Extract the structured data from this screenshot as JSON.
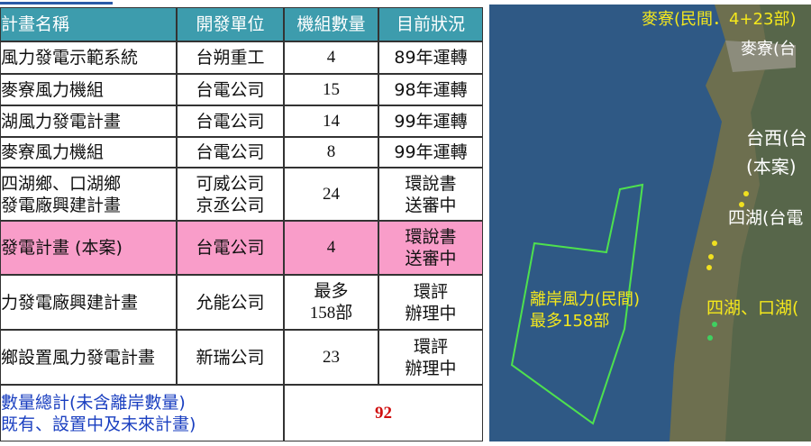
{
  "table": {
    "header": [
      "計畫名稱",
      "開發單位",
      "機組數量",
      "目前狀況"
    ],
    "rows": [
      [
        [
          "風力發電示範系統"
        ],
        [
          "台朔重工"
        ],
        [
          "4"
        ],
        [
          "89年運轉"
        ]
      ],
      [
        [
          "麥寮風力機組"
        ],
        [
          "台電公司"
        ],
        [
          "15"
        ],
        [
          "98年運轉"
        ]
      ],
      [
        [
          "湖風力發電計畫"
        ],
        [
          "台電公司"
        ],
        [
          "14"
        ],
        [
          "99年運轉"
        ]
      ],
      [
        [
          "麥寮風力機組"
        ],
        [
          "台電公司"
        ],
        [
          "8"
        ],
        [
          "99年運轉"
        ]
      ],
      [
        [
          "四湖鄉、口湖鄉",
          "發電廠興建計畫"
        ],
        [
          "可威公司",
          "京丞公司"
        ],
        [
          "24"
        ],
        [
          "環說書",
          "送審中"
        ]
      ],
      [
        [
          "發電計畫 (本案)"
        ],
        [
          "台電公司"
        ],
        [
          "4"
        ],
        [
          "環說書",
          "送審中"
        ]
      ],
      [
        [
          "力發電廠興建計畫"
        ],
        [
          "允能公司"
        ],
        [
          "最多",
          "158部"
        ],
        [
          "環評",
          "辦理中"
        ]
      ],
      [
        [
          "鄉設置風力發電計畫"
        ],
        [
          "新瑞公司"
        ],
        [
          "23"
        ],
        [
          "環評",
          "辦理中"
        ]
      ]
    ],
    "total": {
      "label": [
        "數量總計(未含離岸數量)",
        "既有、設置中及未來計畫)"
      ],
      "value": "92"
    }
  },
  "map": {
    "labels": [
      "麥寮(民間．4+23部)",
      "麥寮(台",
      "台西(台",
      "(本案)",
      "四湖(台電",
      "離岸風力(民間)",
      "最多158部",
      "四湖、口湖("
    ]
  }
}
